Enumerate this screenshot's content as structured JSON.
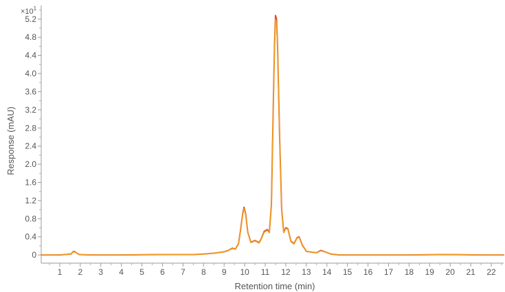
{
  "chart_data": {
    "type": "line",
    "title": "",
    "xlabel": "Retention time (min)",
    "ylabel": "Response (mAU)",
    "y_multiplier_label": "×10",
    "y_multiplier_exp": "1",
    "xlim": [
      0.1,
      22.6
    ],
    "ylim": [
      -0.18,
      5.5
    ],
    "xticks": [
      1,
      2,
      3,
      4,
      5,
      6,
      7,
      8,
      9,
      10,
      11,
      12,
      13,
      14,
      15,
      16,
      17,
      18,
      19,
      20,
      21,
      22
    ],
    "yticks": [
      "0",
      "0.4",
      "0.8",
      "1.2",
      "1.6",
      "2.0",
      "2.4",
      "2.8",
      "3.2",
      "3.6",
      "4.0",
      "4.4",
      "4.8",
      "5.2"
    ],
    "grid": false,
    "series": [
      {
        "color": "#d94a2b",
        "x": [
          0.1,
          1.0,
          1.55,
          1.65,
          1.7,
          1.8,
          1.95,
          2.5,
          4.0,
          6.0,
          7.5,
          8.0,
          8.5,
          9.0,
          9.2,
          9.4,
          9.55,
          9.7,
          9.8,
          9.9,
          9.97,
          10.05,
          10.15,
          10.3,
          10.5,
          10.7,
          10.8,
          10.95,
          11.1,
          11.2,
          11.3,
          11.4,
          11.45,
          11.5,
          11.55,
          11.6,
          11.7,
          11.8,
          11.9,
          12.0,
          12.1,
          12.25,
          12.4,
          12.55,
          12.65,
          12.8,
          13.0,
          13.3,
          13.5,
          13.7,
          13.9,
          14.2,
          14.6,
          15.0,
          16.0,
          18.0,
          20.0,
          21.5,
          22.6
        ],
        "y": [
          0.0,
          0.0,
          0.02,
          0.07,
          0.08,
          0.05,
          0.01,
          0.0,
          0.0,
          0.01,
          0.01,
          0.02,
          0.04,
          0.07,
          0.1,
          0.15,
          0.13,
          0.25,
          0.55,
          0.9,
          1.05,
          0.9,
          0.5,
          0.28,
          0.32,
          0.27,
          0.35,
          0.52,
          0.56,
          0.5,
          1.1,
          3.5,
          4.6,
          5.28,
          5.2,
          4.6,
          2.6,
          1.0,
          0.5,
          0.6,
          0.58,
          0.3,
          0.25,
          0.38,
          0.4,
          0.22,
          0.08,
          0.06,
          0.05,
          0.1,
          0.07,
          0.02,
          0.0,
          0.0,
          0.0,
          0.0,
          0.01,
          0.0,
          0.0
        ]
      },
      {
        "color": "#f0a020",
        "x": [
          0.1,
          1.0,
          1.55,
          1.65,
          1.7,
          1.8,
          1.95,
          2.5,
          4.0,
          6.0,
          7.5,
          8.0,
          8.5,
          9.0,
          9.2,
          9.4,
          9.55,
          9.7,
          9.8,
          9.9,
          9.97,
          10.05,
          10.15,
          10.3,
          10.5,
          10.7,
          10.8,
          10.95,
          11.1,
          11.2,
          11.3,
          11.4,
          11.45,
          11.5,
          11.55,
          11.6,
          11.7,
          11.8,
          11.9,
          12.0,
          12.1,
          12.25,
          12.4,
          12.55,
          12.65,
          12.8,
          13.0,
          13.3,
          13.5,
          13.7,
          13.9,
          14.2,
          14.6,
          15.0,
          16.0,
          18.0,
          20.0,
          21.5,
          22.6
        ],
        "y": [
          0.0,
          0.0,
          0.02,
          0.06,
          0.07,
          0.05,
          0.01,
          0.0,
          0.0,
          0.01,
          0.01,
          0.02,
          0.04,
          0.07,
          0.1,
          0.14,
          0.13,
          0.24,
          0.53,
          0.88,
          1.02,
          0.88,
          0.49,
          0.27,
          0.31,
          0.26,
          0.34,
          0.5,
          0.54,
          0.49,
          1.08,
          3.45,
          4.55,
          5.2,
          5.12,
          4.55,
          2.55,
          0.98,
          0.49,
          0.58,
          0.57,
          0.29,
          0.24,
          0.37,
          0.39,
          0.21,
          0.08,
          0.06,
          0.05,
          0.09,
          0.07,
          0.02,
          0.0,
          0.0,
          0.0,
          0.0,
          0.01,
          0.0,
          0.0
        ]
      }
    ]
  }
}
